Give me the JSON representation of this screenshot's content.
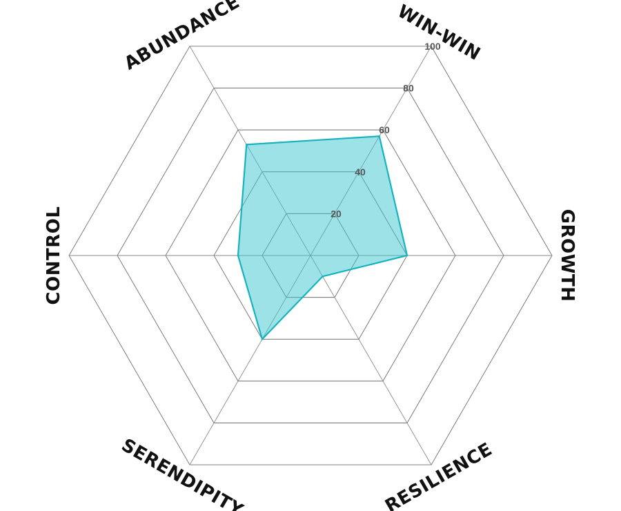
{
  "chart_data": {
    "type": "radar",
    "axes": [
      "WIN-WIN",
      "GROWTH",
      "RESILIENCE",
      "SERENDIPITY",
      "CONTROL",
      "ABUNDANCE"
    ],
    "series": [
      {
        "values": [
          57,
          40,
          10,
          40,
          30,
          53
        ]
      }
    ],
    "rlim": [
      0,
      100
    ],
    "ticks": [
      20,
      40,
      60,
      80,
      100
    ],
    "tick_labels": [
      "20",
      "40",
      "60",
      "80",
      "100"
    ],
    "grid": true,
    "colors": {
      "fill": "#3cc6cf",
      "stroke": "#16b3bf",
      "grid": "#6e6e6e"
    },
    "fill_opacity": 0.5
  }
}
